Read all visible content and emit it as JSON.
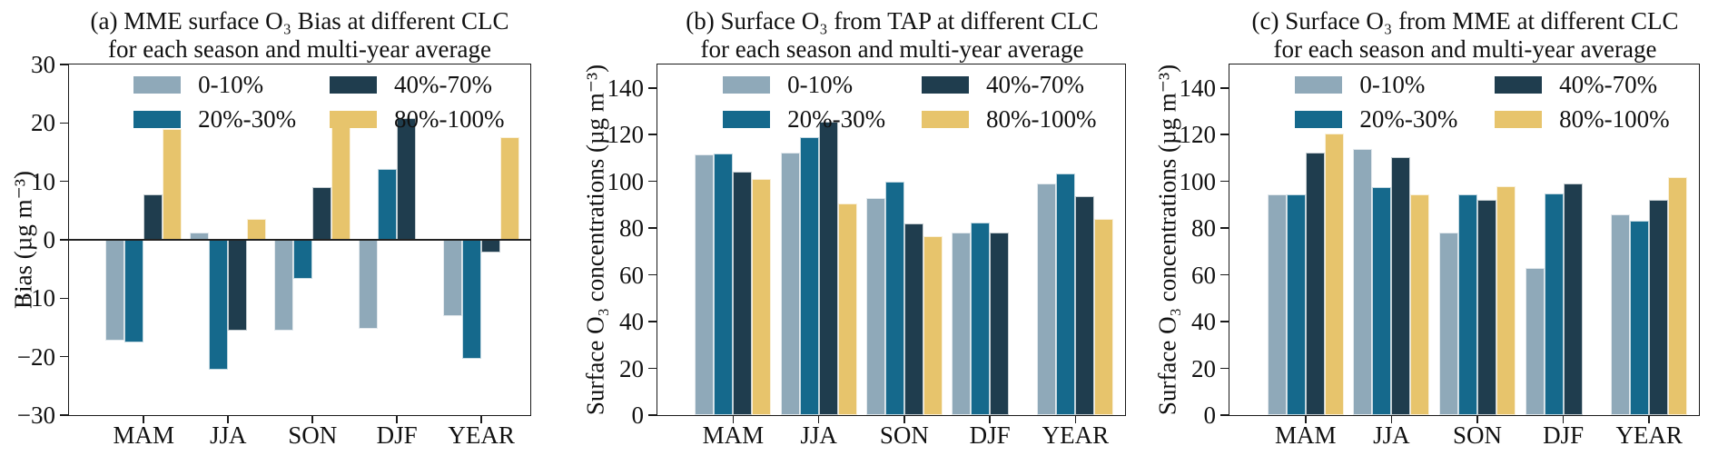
{
  "figure": {
    "background_color": "#ffffff",
    "series_colors": {
      "clc_0_10": "#8FA9B9",
      "clc_20_30": "#15698C",
      "clc_40_70": "#1F3D4E",
      "clc_80_100": "#E7C46C"
    }
  },
  "chart_data": [
    {
      "type": "bar",
      "panel": "a",
      "title_line1": "(a) MME surface O₃ Bias at different CLC",
      "title_line2": "for each season and multi-year average",
      "ylabel": "Bias (µg m⁻³)",
      "xlabel": "",
      "ylim": [
        -30,
        30
      ],
      "yticks": [
        30,
        20,
        10,
        0,
        -10,
        -20,
        -30
      ],
      "grid": false,
      "legend_position": "upper inside, two columns",
      "categories": [
        "MAM",
        "JJA",
        "SON",
        "DJF",
        "YEAR"
      ],
      "series": [
        {
          "name": "0-10%",
          "color": "#8FA9B9",
          "values": [
            -17.2,
            1.3,
            -15.5,
            -15.3,
            -13.1
          ]
        },
        {
          "name": "20%-30%",
          "color": "#15698C",
          "values": [
            -17.6,
            -22.3,
            -6.7,
            12.2,
            -20.3
          ]
        },
        {
          "name": "40%-70%",
          "color": "#1F3D4E",
          "values": [
            7.8,
            -15.6,
            9.0,
            20.8,
            -2.2
          ]
        },
        {
          "name": "80%-100%",
          "color": "#E7C46C",
          "values": [
            19.0,
            3.6,
            20.8,
            null,
            17.6
          ]
        }
      ]
    },
    {
      "type": "bar",
      "panel": "b",
      "title_line1": "(b) Surface O₃ from TAP at different CLC",
      "title_line2": "for each season and multi-year average",
      "ylabel": "Surface O₃ concentrations (µg m⁻³)",
      "xlabel": "",
      "ylim": [
        0,
        150
      ],
      "yticks": [
        140,
        120,
        100,
        80,
        60,
        40,
        20,
        0
      ],
      "grid": false,
      "legend_position": "upper inside, two columns",
      "categories": [
        "MAM",
        "JJA",
        "SON",
        "DJF",
        "YEAR"
      ],
      "series": [
        {
          "name": "0-10%",
          "color": "#8FA9B9",
          "values": [
            111.5,
            112.5,
            93.0,
            78.0,
            99.0
          ]
        },
        {
          "name": "20%-30%",
          "color": "#15698C",
          "values": [
            112.0,
            119.0,
            100.0,
            82.5,
            103.5
          ]
        },
        {
          "name": "40%-70%",
          "color": "#1F3D4E",
          "values": [
            104.0,
            125.5,
            82.0,
            78.0,
            93.5
          ]
        },
        {
          "name": "80%-100%",
          "color": "#E7C46C",
          "values": [
            101.0,
            90.5,
            76.5,
            null,
            84.0
          ]
        }
      ]
    },
    {
      "type": "bar",
      "panel": "c",
      "title_line1": "(c) Surface O₃ from MME at different CLC",
      "title_line2": "for each season and multi-year average",
      "ylabel": "Surface O₃ concentrations (µg m⁻³)",
      "xlabel": "",
      "ylim": [
        0,
        150
      ],
      "yticks": [
        140,
        120,
        100,
        80,
        60,
        40,
        20,
        0
      ],
      "grid": false,
      "legend_position": "upper inside, two columns",
      "categories": [
        "MAM",
        "JJA",
        "SON",
        "DJF",
        "YEAR"
      ],
      "series": [
        {
          "name": "0-10%",
          "color": "#8FA9B9",
          "values": [
            94.5,
            114.0,
            78.0,
            63.0,
            86.0
          ]
        },
        {
          "name": "20%-30%",
          "color": "#15698C",
          "values": [
            94.5,
            97.5,
            94.5,
            95.0,
            83.0
          ]
        },
        {
          "name": "40%-70%",
          "color": "#1F3D4E",
          "values": [
            112.5,
            110.5,
            92.0,
            99.0,
            92.0
          ]
        },
        {
          "name": "80%-100%",
          "color": "#E7C46C",
          "values": [
            120.5,
            94.5,
            98.0,
            null,
            102.0
          ]
        }
      ]
    }
  ]
}
